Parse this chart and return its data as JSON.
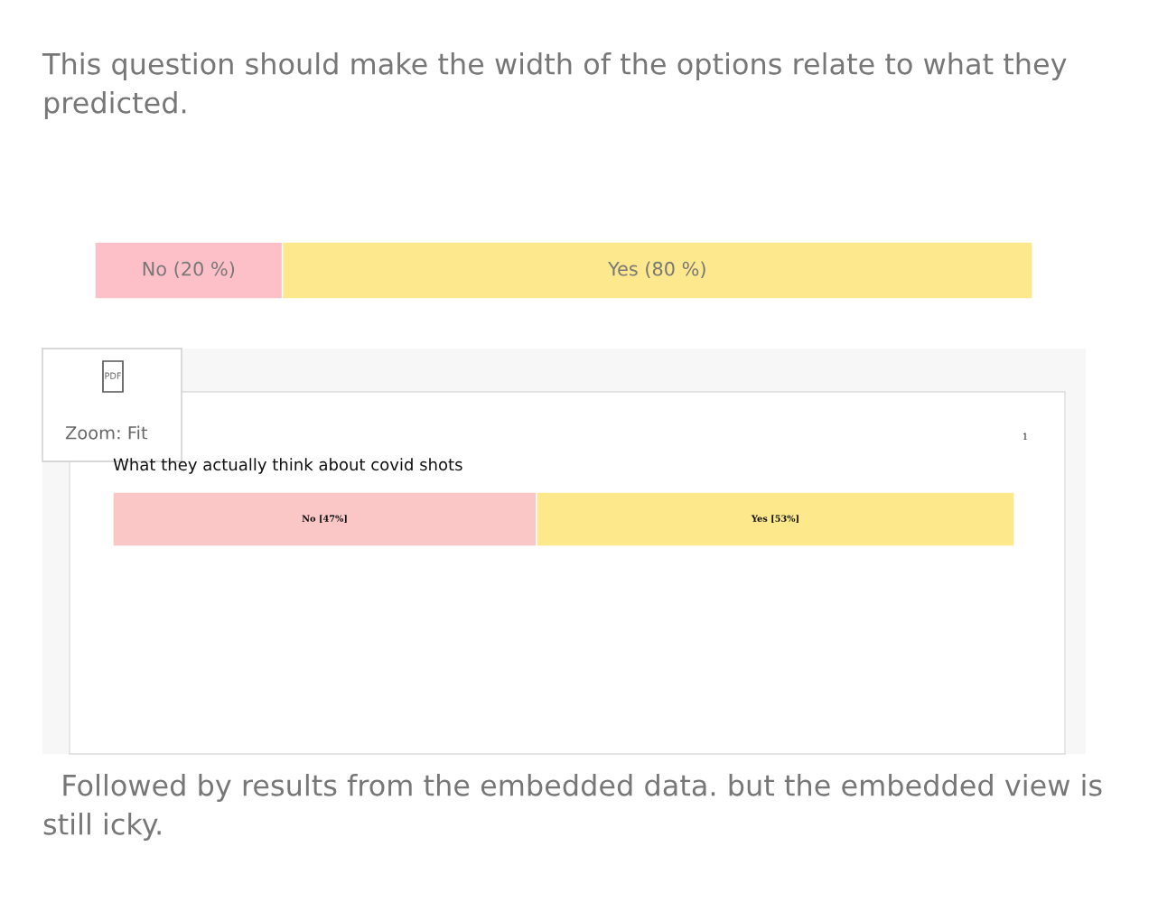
{
  "chart_data": [
    {
      "type": "bar",
      "orientation": "horizontal",
      "stacked": true,
      "categories": [
        null
      ],
      "xlim": [
        0,
        100
      ],
      "tick_labels": false,
      "annotations": [
        "This question should make the width of the options relate to what they predicted."
      ],
      "series": [
        {
          "color": "#fec0c8",
          "values": [
            20
          ],
          "value_labels": [
            "No (20 %)"
          ]
        },
        {
          "color": "#fde88d",
          "values": [
            80
          ],
          "value_labels": [
            "Yes (80 %)"
          ]
        }
      ]
    },
    {
      "type": "bar",
      "orientation": "horizontal",
      "stacked": true,
      "categories": [
        null
      ],
      "xlim": [
        0,
        100
      ],
      "tick_labels": false,
      "title": "What they actually think about covid shots",
      "annotations": [
        "PDF",
        "Zoom: Fit",
        "1",
        "Followed by results from the embedded data. but the embedded view is still icky."
      ],
      "series": [
        {
          "color": "#fac7c6",
          "values": [
            47
          ],
          "value_labels": [
            "No [47%]"
          ]
        },
        {
          "color": "#fde98b",
          "values": [
            53
          ],
          "value_labels": [
            "Yes [53%]"
          ]
        }
      ]
    }
  ]
}
